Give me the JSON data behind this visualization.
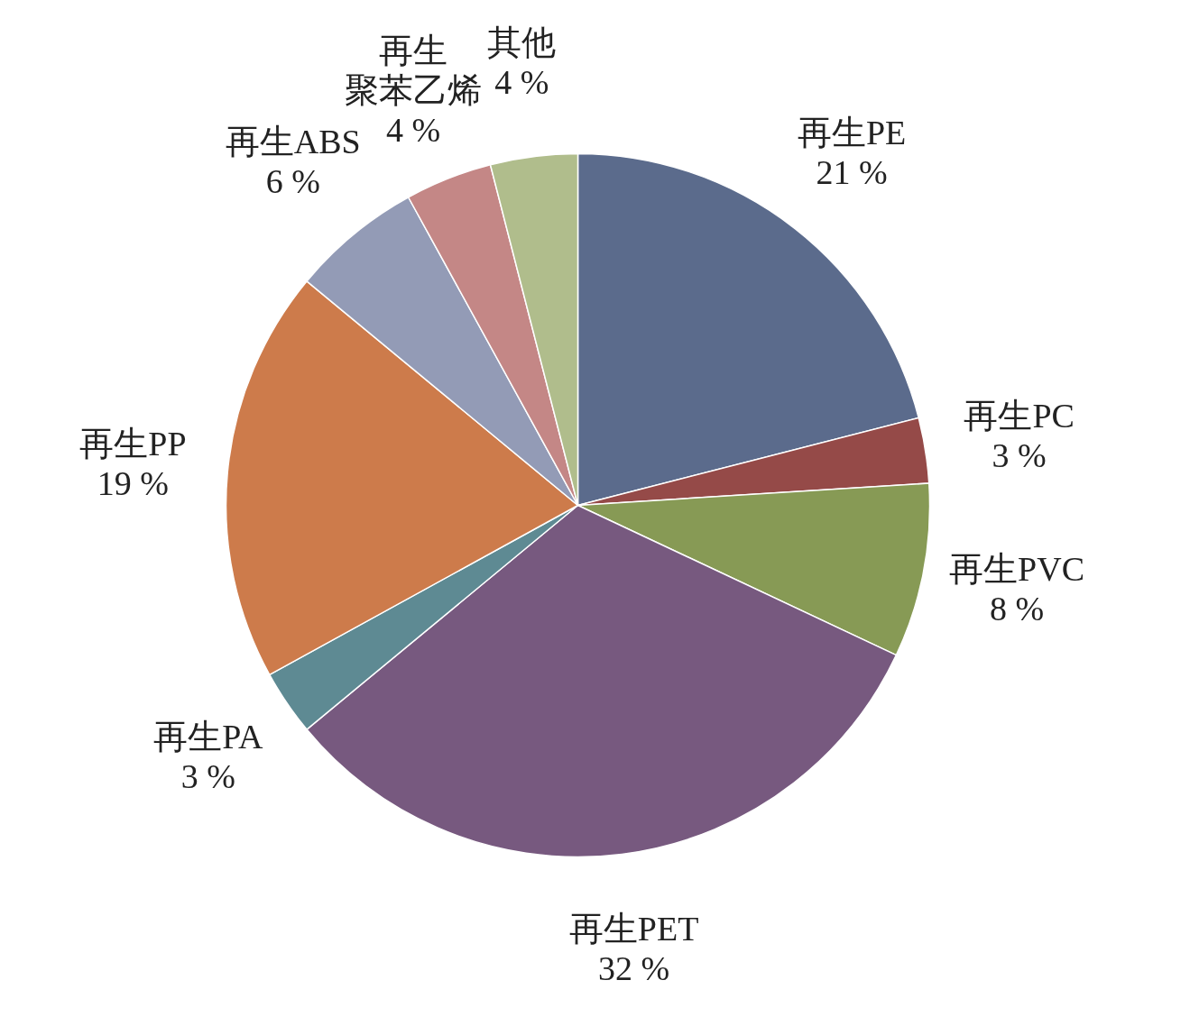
{
  "chart_data": {
    "type": "pie",
    "categories": [
      "再生PE",
      "再生PC",
      "再生PVC",
      "再生PET",
      "再生PA",
      "再生PP",
      "再生ABS",
      "再生聚苯乙烯",
      "其他"
    ],
    "values": [
      21,
      3,
      8,
      32,
      3,
      19,
      6,
      4,
      4
    ],
    "value_labels": [
      "21 %",
      "3 %",
      "8 %",
      "32 %",
      "3 %",
      "19 %",
      "6 %",
      "4 %",
      "4 %"
    ],
    "colors": [
      "#5b6b8c",
      "#954a48",
      "#879a55",
      "#77597f",
      "#5e8a93",
      "#cd7b4b",
      "#939bb6",
      "#c48786",
      "#b0bd8c"
    ]
  }
}
